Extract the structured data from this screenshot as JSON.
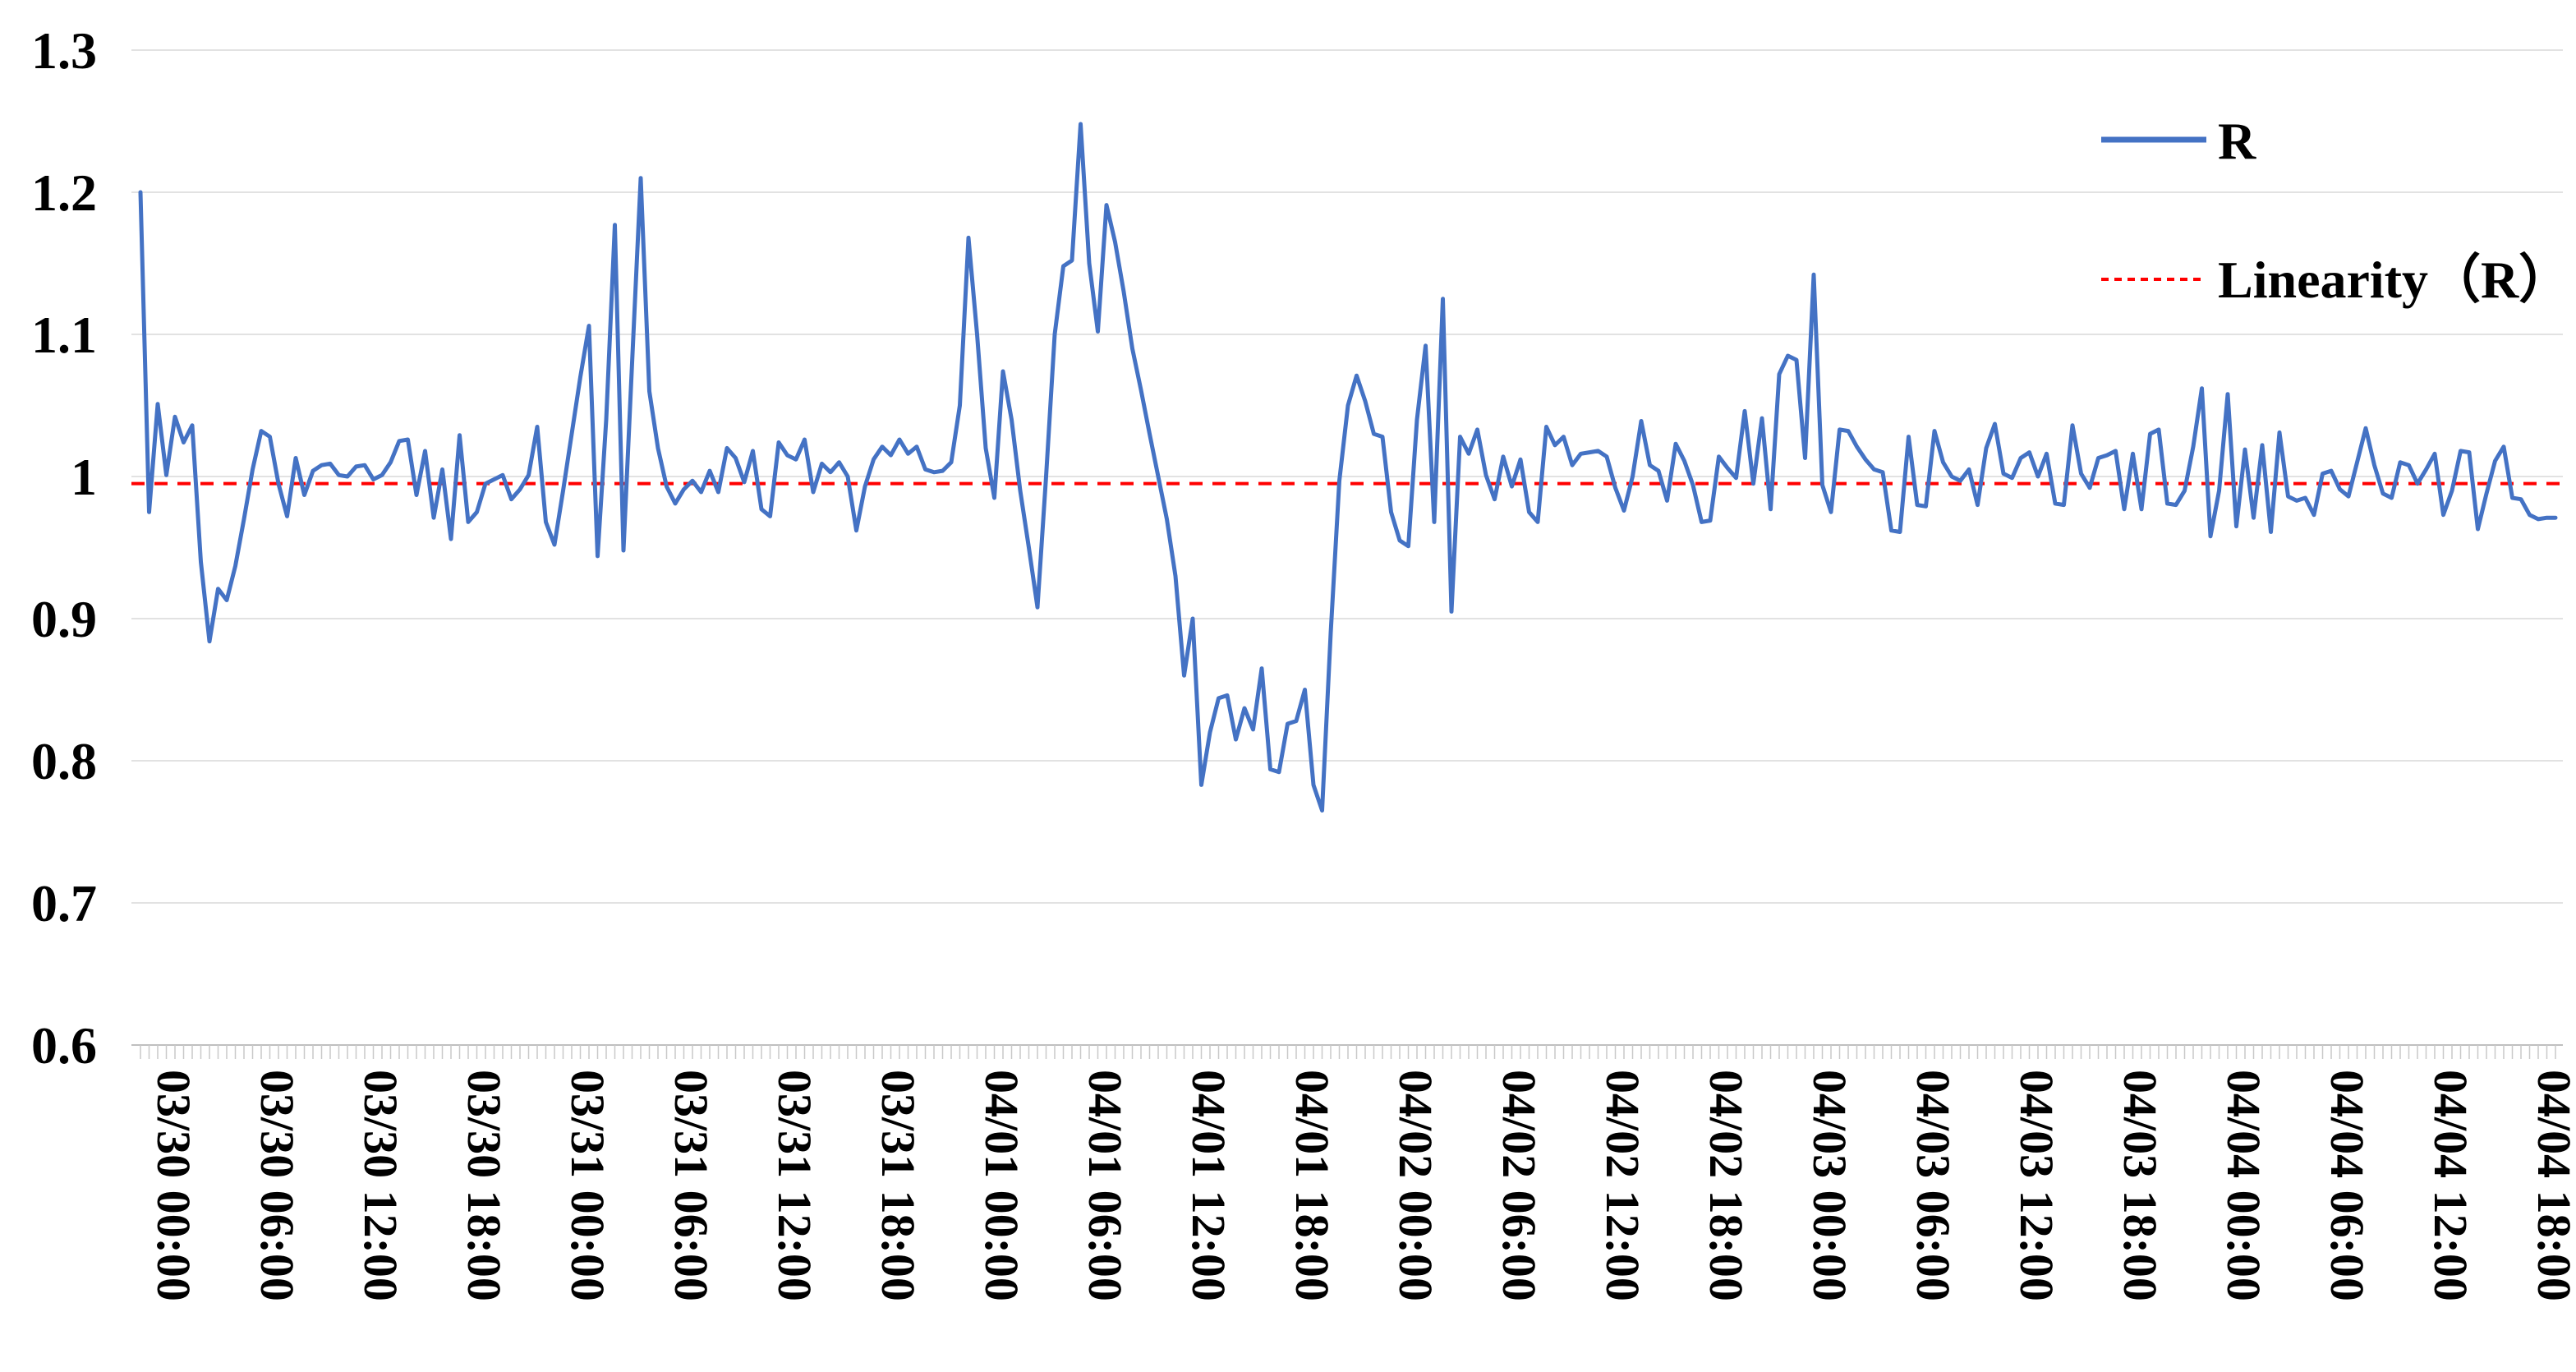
{
  "chart_data": {
    "type": "line",
    "title": "",
    "xlabel": "",
    "ylabel": "",
    "ylim": [
      0.6,
      1.3
    ],
    "grid": true,
    "legend_position": "right-top",
    "y_ticks": [
      {
        "label": "1.3",
        "value": 1.3
      },
      {
        "label": "1.2",
        "value": 1.2
      },
      {
        "label": "1.1",
        "value": 1.1
      },
      {
        "label": "1",
        "value": 1.0
      },
      {
        "label": "0.9",
        "value": 0.9
      },
      {
        "label": "0.8",
        "value": 0.8
      },
      {
        "label": "0.7",
        "value": 0.7
      },
      {
        "label": "0.6",
        "value": 0.6
      }
    ],
    "x_start": "03/30 00:00",
    "x_interval_minutes": 30,
    "x_label_every_points": 12,
    "x_tick_labels": [
      "03/30 00:00",
      "03/30 06:00",
      "03/30 12:00",
      "03/30 18:00",
      "03/31 00:00",
      "03/31 06:00",
      "03/31 12:00",
      "03/31 18:00",
      "04/01 00:00",
      "04/01 06:00",
      "04/01 12:00",
      "04/01 18:00",
      "04/02 00:00",
      "04/02 06:00",
      "04/02 12:00",
      "04/02 18:00",
      "04/03 00:00",
      "04/03 06:00",
      "04/03 12:00",
      "04/03 18:00",
      "04/04 00:00",
      "04/04 06:00",
      "04/04 12:00",
      "04/04 18:00"
    ],
    "series": [
      {
        "name": "R",
        "color": "#4472C4",
        "style": "solid",
        "values": [
          1.2,
          0.975,
          1.051,
          1.001,
          1.042,
          1.024,
          1.036,
          0.94,
          0.884,
          0.921,
          0.913,
          0.937,
          0.97,
          1.005,
          1.032,
          1.028,
          0.995,
          0.972,
          1.013,
          0.987,
          1.004,
          1.008,
          1.009,
          1.001,
          1.0,
          1.007,
          1.008,
          0.998,
          1.001,
          1.01,
          1.025,
          1.026,
          0.987,
          1.018,
          0.971,
          1.005,
          0.956,
          1.029,
          0.968,
          0.975,
          0.995,
          0.998,
          1.001,
          0.984,
          0.991,
          1.001,
          1.035,
          0.968,
          0.952,
          0.99,
          1.03,
          1.07,
          1.106,
          0.944,
          1.04,
          1.177,
          0.948,
          1.08,
          1.21,
          1.06,
          1.02,
          0.993,
          0.981,
          0.991,
          0.997,
          0.989,
          1.004,
          0.989,
          1.02,
          1.013,
          0.996,
          1.018,
          0.977,
          0.972,
          1.024,
          1.015,
          1.012,
          1.026,
          0.989,
          1.009,
          1.003,
          1.01,
          1.0,
          0.962,
          0.993,
          1.012,
          1.021,
          1.015,
          1.026,
          1.016,
          1.021,
          1.005,
          1.003,
          1.004,
          1.01,
          1.05,
          1.168,
          1.1,
          1.02,
          0.985,
          1.074,
          1.04,
          0.99,
          0.95,
          0.908,
          1.0,
          1.1,
          1.148,
          1.152,
          1.248,
          1.15,
          1.102,
          1.191,
          1.165,
          1.13,
          1.09,
          1.061,
          1.03,
          1.0,
          0.97,
          0.93,
          0.86,
          0.9,
          0.783,
          0.82,
          0.844,
          0.846,
          0.815,
          0.837,
          0.822,
          0.865,
          0.794,
          0.792,
          0.826,
          0.828,
          0.85,
          0.783,
          0.765,
          0.89,
          0.997,
          1.05,
          1.071,
          1.053,
          1.03,
          1.028,
          0.975,
          0.955,
          0.951,
          1.04,
          1.092,
          0.968,
          1.125,
          0.905,
          1.028,
          1.016,
          1.033,
          1.001,
          0.984,
          1.014,
          0.993,
          1.012,
          0.975,
          0.968,
          1.035,
          1.022,
          1.028,
          1.008,
          1.016,
          1.017,
          1.018,
          1.014,
          0.992,
          0.976,
          1.0,
          1.039,
          1.008,
          1.004,
          0.983,
          1.023,
          1.011,
          0.994,
          0.968,
          0.969,
          1.014,
          1.006,
          0.999,
          1.046,
          0.995,
          1.041,
          0.977,
          1.072,
          1.085,
          1.082,
          1.013,
          1.142,
          0.994,
          0.975,
          1.033,
          1.032,
          1.021,
          1.012,
          1.005,
          1.003,
          0.962,
          0.961,
          1.028,
          0.98,
          0.979,
          1.032,
          1.01,
          1.0,
          0.997,
          1.005,
          0.98,
          1.02,
          1.037,
          1.002,
          0.999,
          1.013,
          1.017,
          1.0,
          1.016,
          0.981,
          0.98,
          1.036,
          1.002,
          0.992,
          1.013,
          1.015,
          1.018,
          0.977,
          1.016,
          0.977,
          1.03,
          1.033,
          0.981,
          0.98,
          0.99,
          1.021,
          1.062,
          0.958,
          0.99,
          1.058,
          0.965,
          1.019,
          0.971,
          1.022,
          0.961,
          1.031,
          0.986,
          0.983,
          0.985,
          0.973,
          1.002,
          1.004,
          0.991,
          0.986,
          1.01,
          1.034,
          1.008,
          0.988,
          0.985,
          1.01,
          1.008,
          0.995,
          1.005,
          1.016,
          0.973,
          0.99,
          1.018,
          1.017,
          0.963,
          0.988,
          1.011,
          1.021,
          0.985,
          0.984,
          0.973,
          0.97,
          0.971,
          0.971
        ]
      },
      {
        "name": "Linearity（R）",
        "color": "#FF0000",
        "style": "dashed",
        "constant_value": 0.995
      }
    ],
    "colors": {
      "gridline": "#D9D9D9",
      "axis_line": "#BFBFBF",
      "tick": "#C9C9C9",
      "text": "#000000",
      "background": "#FFFFFF"
    }
  }
}
